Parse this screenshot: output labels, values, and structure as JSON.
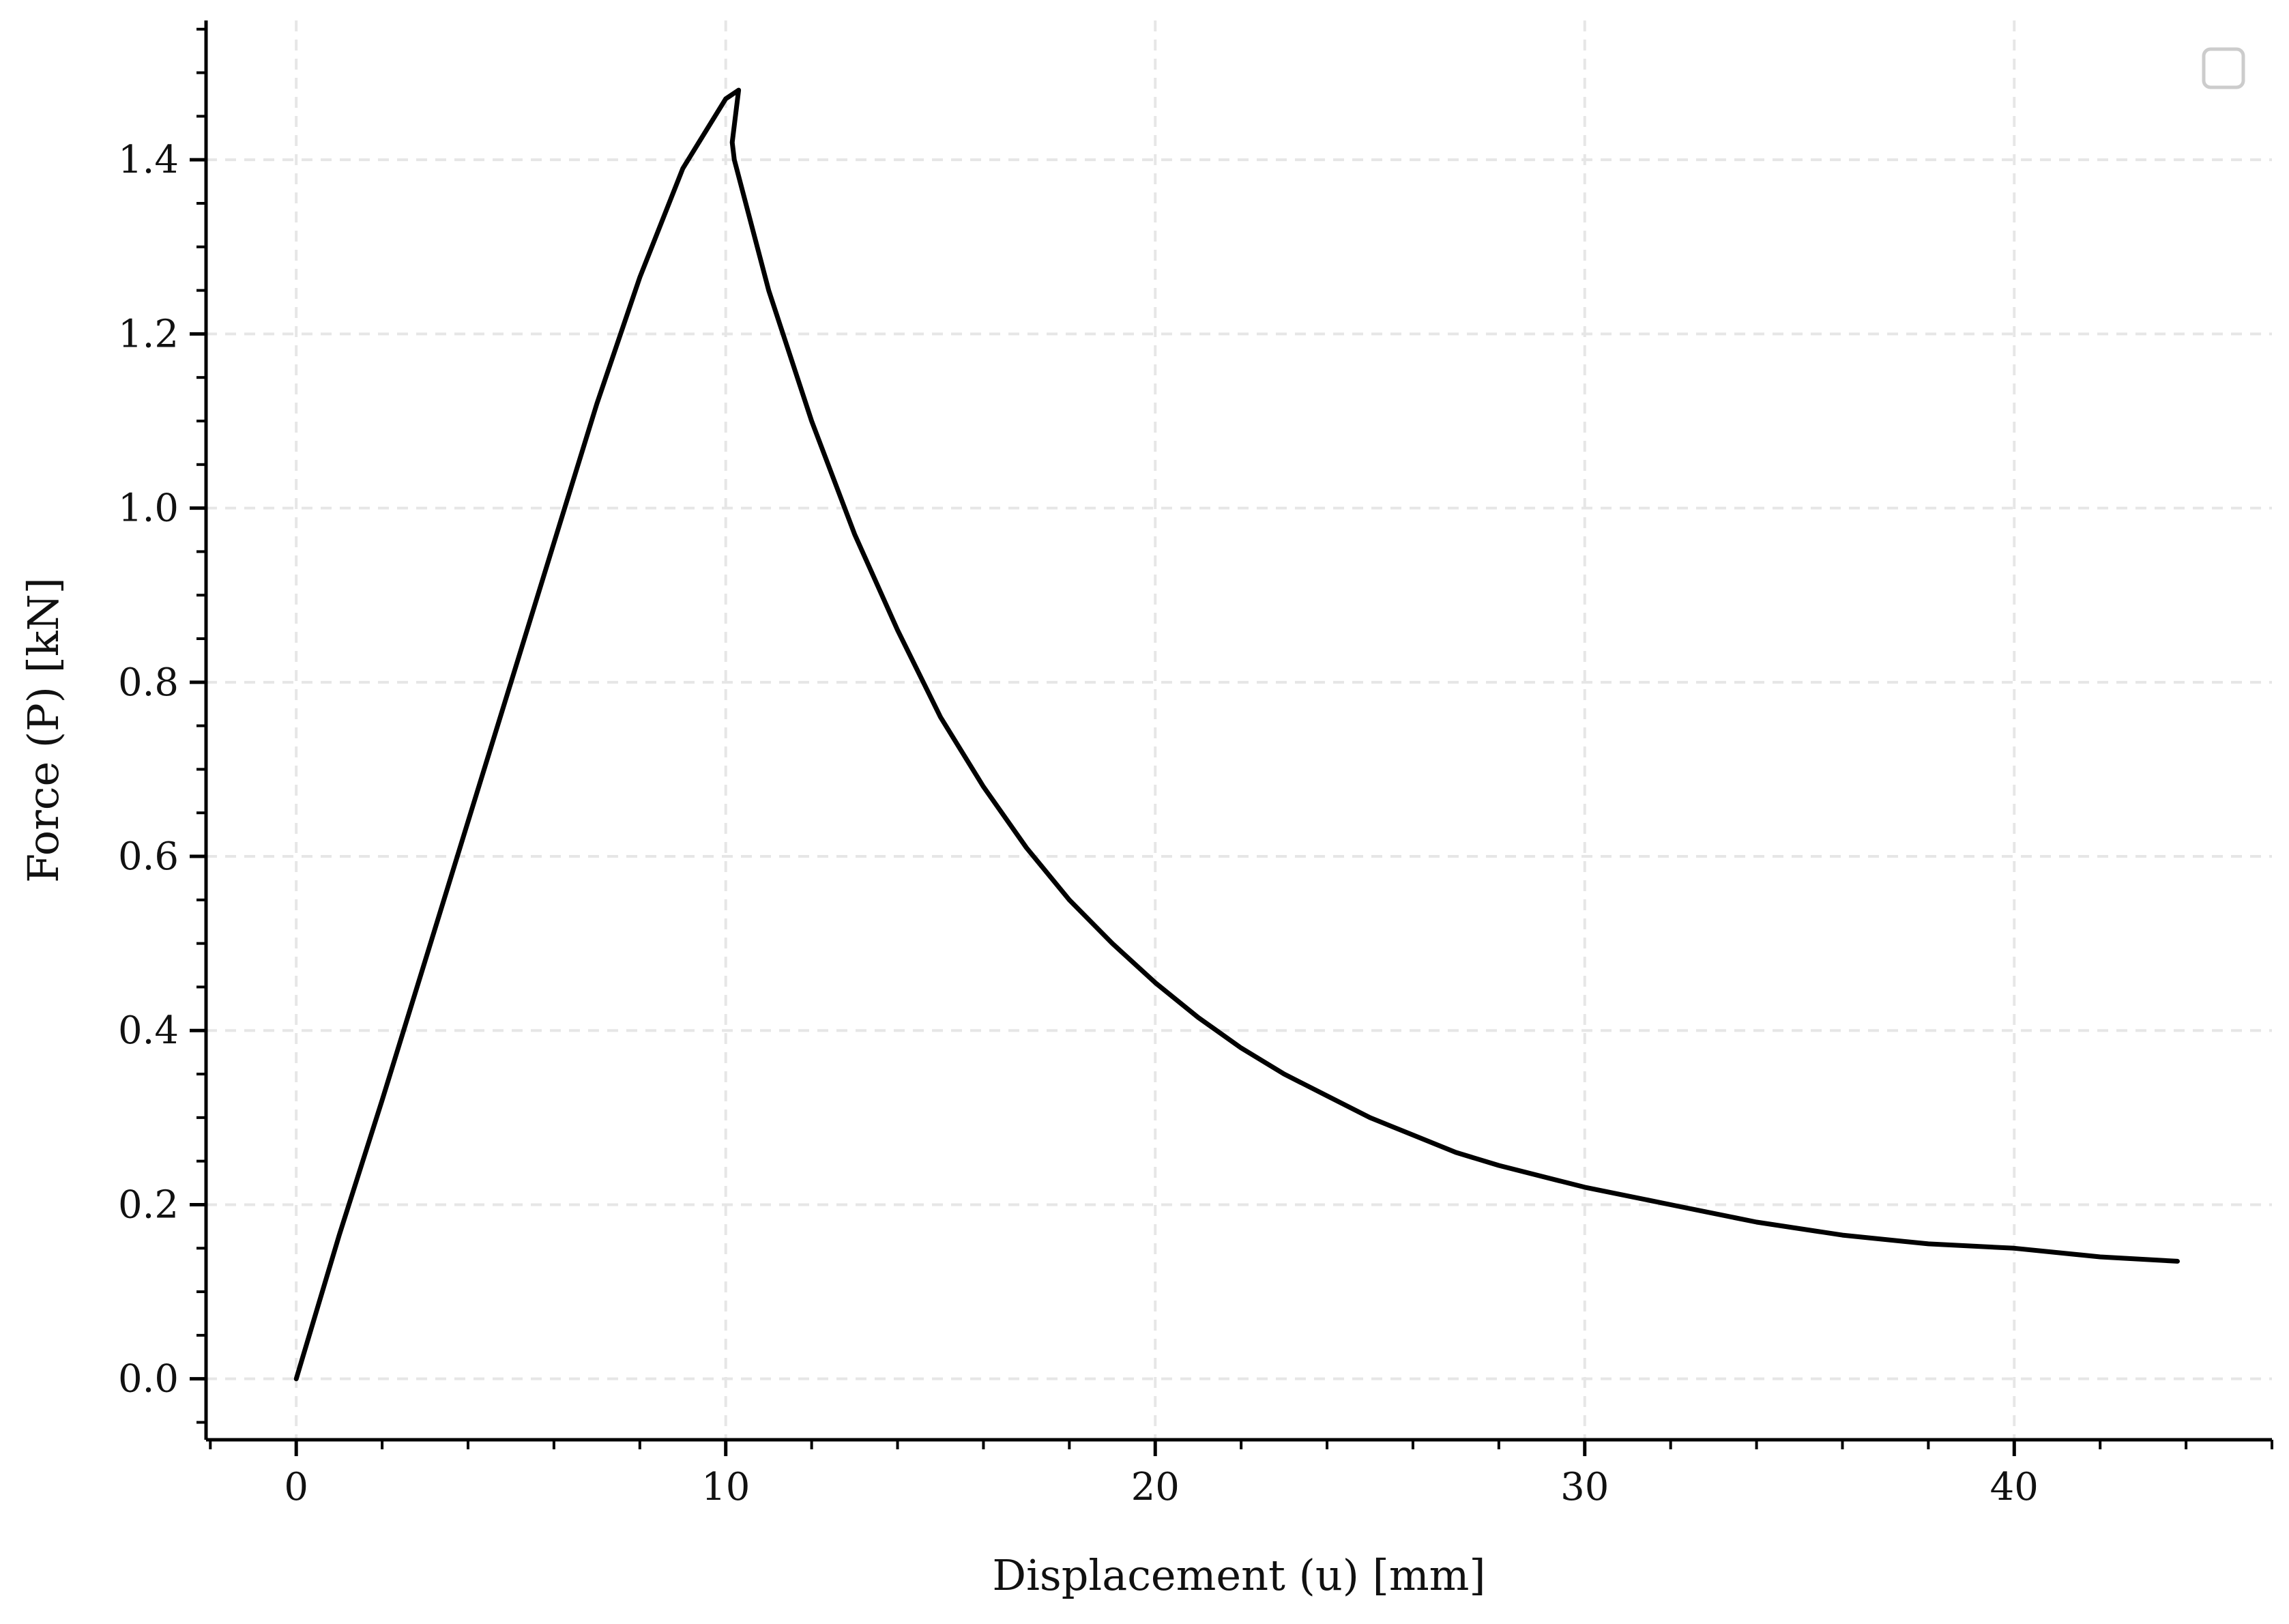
{
  "chart_data": {
    "type": "line",
    "title": "",
    "xlabel": "Displacement (u) [mm]",
    "ylabel": "Force (P) [kN]",
    "xlim": [
      -2.1,
      46
    ],
    "ylim": [
      -0.07,
      1.56
    ],
    "x_ticks": [
      0,
      10,
      20,
      30,
      40
    ],
    "y_ticks": [
      0.0,
      0.2,
      0.4,
      0.6,
      0.8,
      1.0,
      1.2,
      1.4
    ],
    "x_tick_labels": [
      "0",
      "10",
      "20",
      "30",
      "40"
    ],
    "y_tick_labels": [
      "0.0",
      "0.2",
      "0.4",
      "0.6",
      "0.8",
      "1.0",
      "1.2",
      "1.4"
    ],
    "x_minor_step": 2,
    "y_minor_step": 0.05,
    "grid": true,
    "legend": {
      "visible": true,
      "placement": "top-right",
      "entries": []
    },
    "colors": {
      "line": "#000000",
      "grid": "#e6e6e6",
      "axis": "#000000",
      "legend_border": "#cccccc"
    },
    "series": [
      {
        "x": [
          0,
          1,
          2,
          3,
          4,
          5,
          6,
          7,
          8,
          9,
          10,
          10.3,
          10.15,
          10.2,
          11,
          12,
          13,
          14,
          15,
          16,
          17,
          18,
          19,
          20,
          21,
          22,
          23,
          24,
          25,
          26,
          27,
          28,
          30,
          32,
          34,
          36,
          38,
          40,
          42,
          43.8
        ],
        "y": [
          0.0,
          0.165,
          0.32,
          0.48,
          0.64,
          0.8,
          0.96,
          1.12,
          1.265,
          1.39,
          1.47,
          1.48,
          1.42,
          1.4,
          1.25,
          1.1,
          0.97,
          0.86,
          0.76,
          0.68,
          0.61,
          0.55,
          0.5,
          0.455,
          0.415,
          0.38,
          0.35,
          0.325,
          0.3,
          0.28,
          0.26,
          0.245,
          0.22,
          0.2,
          0.18,
          0.165,
          0.155,
          0.15,
          0.14,
          0.135
        ]
      }
    ]
  }
}
